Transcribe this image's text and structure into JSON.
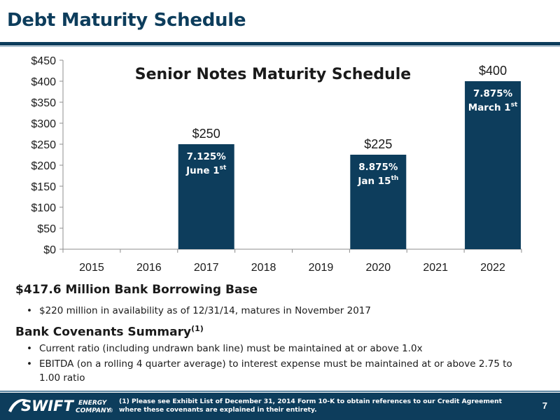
{
  "page": {
    "title": "Debt Maturity Schedule",
    "number": "7"
  },
  "chart_data": {
    "type": "bar",
    "title": "Senior Notes Maturity Schedule",
    "categories": [
      "2015",
      "2016",
      "2017",
      "2018",
      "2019",
      "2020",
      "2021",
      "2022"
    ],
    "values": [
      0,
      0,
      250,
      0,
      0,
      225,
      0,
      400
    ],
    "value_labels": [
      "",
      "",
      "$250",
      "",
      "",
      "$225",
      "",
      "$400"
    ],
    "bar_notes": [
      null,
      null,
      {
        "rate": "7.125%",
        "date": "June 1",
        "sup": "st"
      },
      null,
      null,
      {
        "rate": "8.875%",
        "date": "Jan 15",
        "sup": "th"
      },
      null,
      {
        "rate": "7.875%",
        "date": "March 1",
        "sup": "st"
      }
    ],
    "ylim": [
      0,
      450
    ],
    "yticks": [
      "$0",
      "$50",
      "$100",
      "$150",
      "$200",
      "$250",
      "$300",
      "$350",
      "$400",
      "$450"
    ],
    "xlabel": "",
    "ylabel": "",
    "grid": false,
    "bar_color": "#0d3d5c"
  },
  "bank": {
    "heading": "$417.6 Million Bank Borrowing Base",
    "bullets": [
      "$220 million in availability as of 12/31/14, matures in November 2017"
    ]
  },
  "covenants": {
    "heading": "Bank Covenants Summary",
    "heading_note": "(1)",
    "bullets": [
      "Current ratio (including undrawn bank line) must be maintained at or above 1.0x",
      "EBITDA (on a rolling 4 quarter average) to interest expense must be maintained at or above 2.75 to 1.00 ratio"
    ]
  },
  "footer": {
    "logo_word": "SWIFT",
    "logo_sub_top": "ENERGY",
    "logo_sub_bottom": "COMPANY",
    "logo_mark": "®",
    "footnote": "(1) Please see Exhibit List of December 31, 2014 Form 10-K to obtain references to our Credit Agreement where these covenants are explained in their entirety."
  },
  "colors": {
    "brand": "#0d3d5c",
    "note_text": "#ffffff",
    "text": "#1a1a1a"
  },
  "icons": {
    "bullet": "•",
    "logo": "swift-energy-logo"
  }
}
